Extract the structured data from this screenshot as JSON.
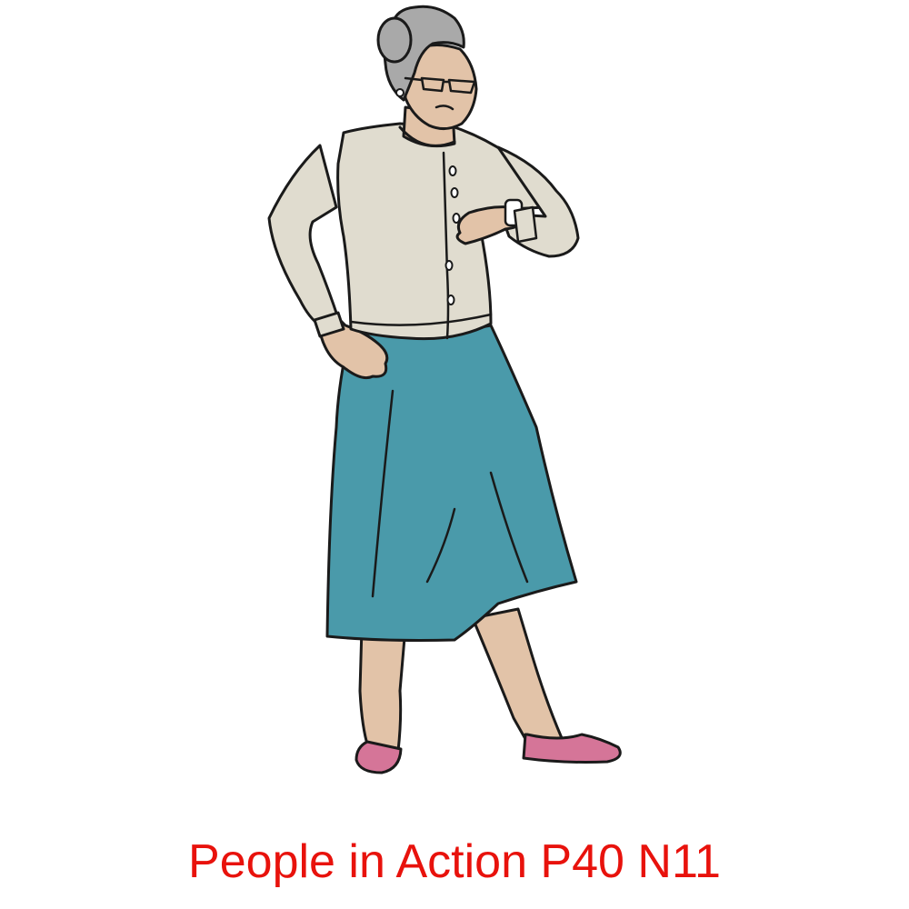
{
  "caption": "People in Action P40 N11",
  "colors": {
    "caption": "#e8120c",
    "skin": "#e2c3a8",
    "hair": "#a9a9a9",
    "cardigan": "#e0dccf",
    "skirt": "#4a9aaa",
    "shoes": "#d57598",
    "outline": "#1a1a1a"
  },
  "illustration": {
    "subject": "elderly woman checking wristwatch",
    "icons": [
      "woman-figure",
      "wristwatch-icon",
      "glasses-icon"
    ]
  }
}
